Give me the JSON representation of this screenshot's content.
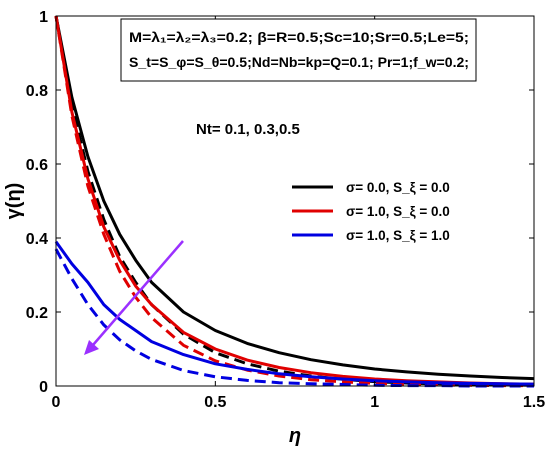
{
  "chart_data": {
    "type": "line",
    "xlabel": "η",
    "ylabel": "γ(η)",
    "xlim": [
      0,
      1.5
    ],
    "ylim": [
      0,
      1
    ],
    "xticks": [
      {
        "value": 0,
        "label": "0"
      },
      {
        "value": 0.5,
        "label": "0.5"
      },
      {
        "value": 1,
        "label": "1"
      },
      {
        "value": 1.5,
        "label": "1.5"
      }
    ],
    "yticks": [
      {
        "value": 0,
        "label": "0"
      },
      {
        "value": 0.2,
        "label": "0.2"
      },
      {
        "value": 0.4,
        "label": "0.4"
      },
      {
        "value": 0.6,
        "label": "0.6"
      },
      {
        "value": 0.8,
        "label": "0.8"
      },
      {
        "value": 1,
        "label": "1"
      }
    ],
    "grid": false,
    "legend_position": "right",
    "parameter_box": {
      "line1": "M=λ₁=λ₂=λ₃=0.2; β=R=0.5;Sc=10;Sr=0.5;Le=5;",
      "line2": "S_t=S_φ=S_θ=0.5;Nd=Nb=kp=Q=0.1; Pr=1;f_w=0.2;"
    },
    "annotation": "Nt= 0.1, 0.3,0.5",
    "arrow_color": "#9b30ff",
    "series": [
      {
        "name": "σ= 0.0, S_ξ = 0.0",
        "color": "#000000",
        "style": "solid",
        "points": [
          [
            0,
            1
          ],
          [
            0.05,
            0.78
          ],
          [
            0.1,
            0.62
          ],
          [
            0.15,
            0.5
          ],
          [
            0.2,
            0.41
          ],
          [
            0.25,
            0.34
          ],
          [
            0.3,
            0.28
          ],
          [
            0.4,
            0.2
          ],
          [
            0.5,
            0.15
          ],
          [
            0.6,
            0.115
          ],
          [
            0.7,
            0.09
          ],
          [
            0.8,
            0.071
          ],
          [
            0.9,
            0.057
          ],
          [
            1.0,
            0.046
          ],
          [
            1.1,
            0.038
          ],
          [
            1.2,
            0.032
          ],
          [
            1.3,
            0.027
          ],
          [
            1.4,
            0.023
          ],
          [
            1.5,
            0.02
          ]
        ]
      },
      {
        "name": "",
        "color": "#000000",
        "style": "dashed",
        "points": [
          [
            0,
            1
          ],
          [
            0.05,
            0.76
          ],
          [
            0.1,
            0.58
          ],
          [
            0.15,
            0.45
          ],
          [
            0.2,
            0.35
          ],
          [
            0.25,
            0.28
          ],
          [
            0.3,
            0.22
          ],
          [
            0.4,
            0.14
          ],
          [
            0.5,
            0.09
          ],
          [
            0.6,
            0.06
          ],
          [
            0.7,
            0.04
          ],
          [
            0.8,
            0.027
          ],
          [
            0.9,
            0.018
          ],
          [
            1.0,
            0.012
          ],
          [
            1.1,
            0.008
          ],
          [
            1.2,
            0.006
          ],
          [
            1.3,
            0.004
          ],
          [
            1.4,
            0.003
          ],
          [
            1.5,
            0.002
          ]
        ]
      },
      {
        "name": "σ= 1.0, S_ξ = 0.0",
        "color": "#e00000",
        "style": "solid",
        "points": [
          [
            0,
            1
          ],
          [
            0.05,
            0.74
          ],
          [
            0.1,
            0.56
          ],
          [
            0.15,
            0.43
          ],
          [
            0.2,
            0.34
          ],
          [
            0.25,
            0.27
          ],
          [
            0.3,
            0.22
          ],
          [
            0.4,
            0.145
          ],
          [
            0.5,
            0.1
          ],
          [
            0.6,
            0.07
          ],
          [
            0.7,
            0.05
          ],
          [
            0.8,
            0.036
          ],
          [
            0.9,
            0.026
          ],
          [
            1.0,
            0.019
          ],
          [
            1.1,
            0.014
          ],
          [
            1.2,
            0.011
          ],
          [
            1.3,
            0.008
          ],
          [
            1.4,
            0.006
          ],
          [
            1.5,
            0.005
          ]
        ]
      },
      {
        "name": "",
        "color": "#e00000",
        "style": "dashed",
        "points": [
          [
            0,
            1
          ],
          [
            0.05,
            0.73
          ],
          [
            0.1,
            0.54
          ],
          [
            0.15,
            0.41
          ],
          [
            0.2,
            0.31
          ],
          [
            0.25,
            0.24
          ],
          [
            0.3,
            0.185
          ],
          [
            0.4,
            0.11
          ],
          [
            0.5,
            0.068
          ],
          [
            0.6,
            0.043
          ],
          [
            0.7,
            0.027
          ],
          [
            0.8,
            0.017
          ],
          [
            0.9,
            0.011
          ],
          [
            1.0,
            0.007
          ],
          [
            1.1,
            0.005
          ],
          [
            1.2,
            0.003
          ],
          [
            1.3,
            0.002
          ],
          [
            1.4,
            0.001
          ],
          [
            1.5,
            0.001
          ]
        ]
      },
      {
        "name": "σ= 1.0, S_ξ = 1.0",
        "color": "#0000e0",
        "style": "solid",
        "points": [
          [
            0,
            0.39
          ],
          [
            0.05,
            0.33
          ],
          [
            0.1,
            0.28
          ],
          [
            0.15,
            0.22
          ],
          [
            0.2,
            0.18
          ],
          [
            0.25,
            0.15
          ],
          [
            0.3,
            0.12
          ],
          [
            0.4,
            0.085
          ],
          [
            0.5,
            0.06
          ],
          [
            0.6,
            0.045
          ],
          [
            0.7,
            0.033
          ],
          [
            0.8,
            0.025
          ],
          [
            0.9,
            0.019
          ],
          [
            1.0,
            0.014
          ],
          [
            1.1,
            0.011
          ],
          [
            1.2,
            0.009
          ],
          [
            1.3,
            0.007
          ],
          [
            1.4,
            0.006
          ],
          [
            1.5,
            0.005
          ]
        ]
      },
      {
        "name": "",
        "color": "#0000e0",
        "style": "dashed",
        "points": [
          [
            0,
            0.37
          ],
          [
            0.05,
            0.29
          ],
          [
            0.1,
            0.22
          ],
          [
            0.15,
            0.165
          ],
          [
            0.2,
            0.125
          ],
          [
            0.25,
            0.095
          ],
          [
            0.3,
            0.072
          ],
          [
            0.4,
            0.042
          ],
          [
            0.5,
            0.025
          ],
          [
            0.6,
            0.015
          ],
          [
            0.7,
            0.009
          ],
          [
            0.8,
            0.006
          ],
          [
            0.9,
            0.004
          ],
          [
            1.0,
            0.002
          ],
          [
            1.1,
            0.001
          ],
          [
            1.2,
            0.001
          ],
          [
            1.3,
            0.0
          ],
          [
            1.4,
            0.0
          ],
          [
            1.5,
            0.0
          ]
        ]
      }
    ]
  }
}
